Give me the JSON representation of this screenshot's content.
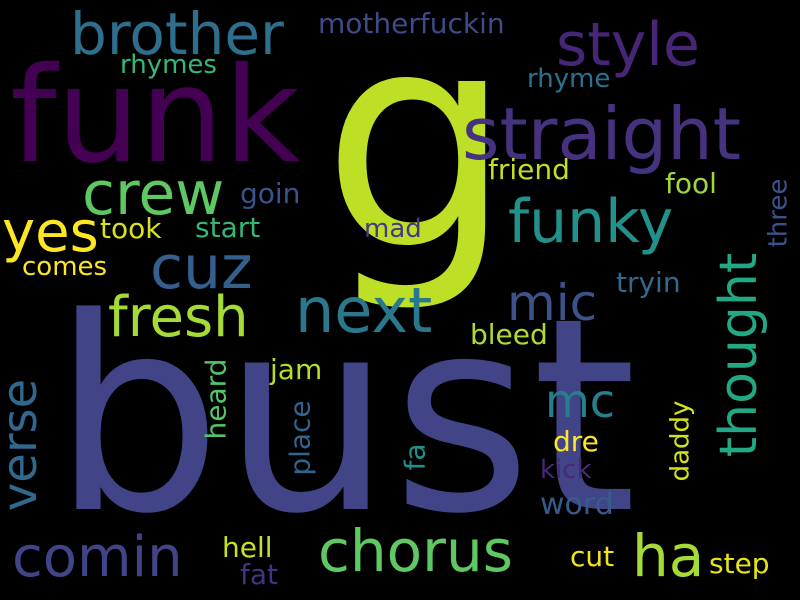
{
  "words": [
    {
      "id": "bust",
      "text": "bust",
      "color": "#414487"
    },
    {
      "id": "g",
      "text": "g",
      "color": "#bddf26"
    },
    {
      "id": "funk",
      "text": "funk",
      "color": "#440154"
    },
    {
      "id": "straight",
      "text": "straight",
      "color": "#46327e"
    },
    {
      "id": "brother",
      "text": "brother",
      "color": "#2e6f8e"
    },
    {
      "id": "style",
      "text": "style",
      "color": "#482677"
    },
    {
      "id": "crew",
      "text": "crew",
      "color": "#5ec962"
    },
    {
      "id": "cuz",
      "text": "cuz",
      "color": "#355f8d"
    },
    {
      "id": "funky",
      "text": "funky",
      "color": "#21918c"
    },
    {
      "id": "fresh",
      "text": "fresh",
      "color": "#a5db36"
    },
    {
      "id": "next",
      "text": "next",
      "color": "#2a788e"
    },
    {
      "id": "yes",
      "text": "yes",
      "color": "#fde725"
    },
    {
      "id": "mic",
      "text": "mic",
      "color": "#3b528b"
    },
    {
      "id": "thought",
      "text": "thought",
      "color": "#22a884"
    },
    {
      "id": "verse",
      "text": "verse",
      "color": "#31688e"
    },
    {
      "id": "comin",
      "text": "comin",
      "color": "#414487"
    },
    {
      "id": "chorus",
      "text": "chorus",
      "color": "#5ec962"
    },
    {
      "id": "ha",
      "text": "ha",
      "color": "#a5db36"
    },
    {
      "id": "mc",
      "text": "mc",
      "color": "#277f8e"
    },
    {
      "id": "motherfuckin",
      "text": "motherfuckin",
      "color": "#3e4a89"
    },
    {
      "id": "rhymes",
      "text": "rhymes",
      "color": "#35b779"
    },
    {
      "id": "rhyme",
      "text": "rhyme",
      "color": "#2c728e"
    },
    {
      "id": "friend",
      "text": "friend",
      "color": "#c2df23"
    },
    {
      "id": "fool",
      "text": "fool",
      "color": "#9fda3a"
    },
    {
      "id": "goin",
      "text": "goin",
      "color": "#3b528b"
    },
    {
      "id": "took",
      "text": "took",
      "color": "#d8e219"
    },
    {
      "id": "start",
      "text": "start",
      "color": "#35b779"
    },
    {
      "id": "mad",
      "text": "mad",
      "color": "#443983"
    },
    {
      "id": "three",
      "text": "three",
      "color": "#3b528b"
    },
    {
      "id": "comes",
      "text": "comes",
      "color": "#fde725"
    },
    {
      "id": "tryin",
      "text": "tryin",
      "color": "#31688e"
    },
    {
      "id": "bleed",
      "text": "bleed",
      "color": "#addc30"
    },
    {
      "id": "jam",
      "text": "jam",
      "color": "#b5de2b"
    },
    {
      "id": "heard",
      "text": "heard",
      "color": "#52c569"
    },
    {
      "id": "place",
      "text": "place",
      "color": "#33638d"
    },
    {
      "id": "fa",
      "text": "fa",
      "color": "#21918c"
    },
    {
      "id": "daddy",
      "text": "daddy",
      "color": "#d2e21b"
    },
    {
      "id": "dre",
      "text": "dre",
      "color": "#fde725"
    },
    {
      "id": "kick",
      "text": "kick",
      "color": "#482878"
    },
    {
      "id": "word",
      "text": "word",
      "color": "#365c8d"
    },
    {
      "id": "hell",
      "text": "hell",
      "color": "#c8e020"
    },
    {
      "id": "cut",
      "text": "cut",
      "color": "#f1e51d"
    },
    {
      "id": "step",
      "text": "step",
      "color": "#e5e419"
    },
    {
      "id": "fat",
      "text": "fat",
      "color": "#46337f"
    }
  ]
}
